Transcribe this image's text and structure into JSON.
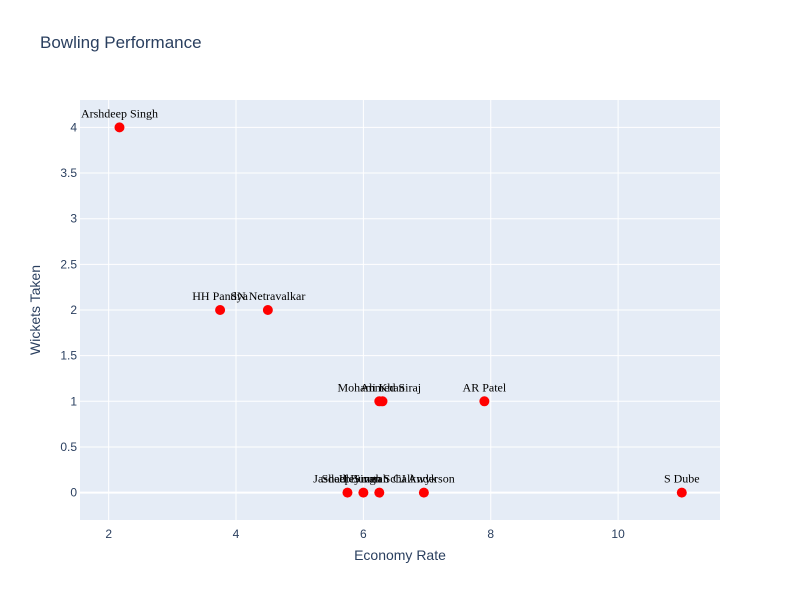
{
  "chart_data": {
    "type": "scatter",
    "title": "Bowling Performance",
    "xlabel": "Economy Rate",
    "ylabel": "Wickets Taken",
    "xlim": [
      1.55,
      11.6
    ],
    "ylim": [
      -0.3,
      4.3
    ],
    "xticks": [
      2,
      4,
      6,
      8,
      10
    ],
    "yticks": [
      0,
      0.5,
      1,
      1.5,
      2,
      2.5,
      3,
      3.5,
      4
    ],
    "grid": true,
    "marker_color": "#ff0000",
    "plot_bg": "#e5ecf6",
    "points": [
      {
        "label": "Arshdeep Singh",
        "x": 2.17,
        "y": 4
      },
      {
        "label": "HH Pandya",
        "x": 3.75,
        "y": 2
      },
      {
        "label": "SN Netravalkar",
        "x": 4.5,
        "y": 2
      },
      {
        "label": "Mohammed Siraj",
        "x": 6.25,
        "y": 1
      },
      {
        "label": "Ali Khan",
        "x": 6.3,
        "y": 1
      },
      {
        "label": "AR Patel",
        "x": 7.9,
        "y": 1
      },
      {
        "label": "Jasdeep Singh",
        "x": 5.75,
        "y": 0
      },
      {
        "label": "JJ Bumrah",
        "x": 6.0,
        "y": 0
      },
      {
        "label": "Shadley van Schalkwyk",
        "x": 6.25,
        "y": 0
      },
      {
        "label": "CJ Anderson",
        "x": 6.95,
        "y": 0
      },
      {
        "label": "S Dube",
        "x": 11.0,
        "y": 0
      }
    ]
  }
}
